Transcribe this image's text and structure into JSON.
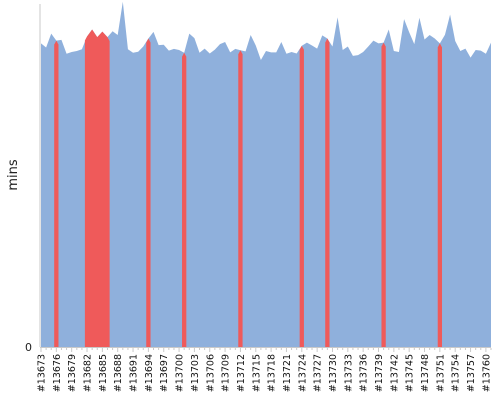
{
  "chart_data": {
    "type": "area",
    "title": "",
    "xlabel": "",
    "ylabel": "mins",
    "ytick_labels": [
      "0"
    ],
    "ylim": [
      0,
      100
    ],
    "grid": false,
    "x_start": 13673,
    "x_end": 13761,
    "x_tick_labels": [
      "#13673",
      "#13676",
      "#13679",
      "#13682",
      "#13685",
      "#13688",
      "#13691",
      "#13694",
      "#13697",
      "#13700",
      "#13703",
      "#13706",
      "#13709",
      "#13712",
      "#13715",
      "#13718",
      "#13721",
      "#13724",
      "#13727",
      "#13730",
      "#13733",
      "#13736",
      "#13739",
      "#13742",
      "#13745",
      "#13748",
      "#13751",
      "#13754",
      "#13757",
      "#13760"
    ],
    "values": [
      87.5,
      86.3,
      90.3,
      88.3,
      88.5,
      84.5,
      85.0,
      85.3,
      85.8,
      89.5,
      91.5,
      89.3,
      90.9,
      89.3,
      91.0,
      89.9,
      99.5,
      85.8,
      84.8,
      85.1,
      86.6,
      88.9,
      90.8,
      87.0,
      87.1,
      85.4,
      85.9,
      85.6,
      84.8,
      90.3,
      89.0,
      84.8,
      86.0,
      84.6,
      85.7,
      87.3,
      87.9,
      84.9,
      85.9,
      85.5,
      85.2,
      89.9,
      86.9,
      82.7,
      85.3,
      84.9,
      84.9,
      87.9,
      84.5,
      85.0,
      84.6,
      86.8,
      87.7,
      86.9,
      86.0,
      89.8,
      88.9,
      86.6,
      95.0,
      85.6,
      86.6,
      83.9,
      84.1,
      85.0,
      86.6,
      88.3,
      87.5,
      87.7,
      91.5,
      85.3,
      85.0,
      94.5,
      90.7,
      87.3,
      94.9,
      88.6,
      89.9,
      88.9,
      87.5,
      90.0,
      95.8,
      88.2,
      85.3,
      86.0,
      83.4,
      85.6,
      85.4,
      84.5,
      87.7
    ],
    "series": [
      {
        "name": "",
        "color": "#8fb0dc"
      },
      {
        "name": "",
        "color": "#ef5a5a",
        "highlight_builds": [
          13676,
          13682,
          13683,
          13684,
          13685,
          13686,
          13694,
          13701,
          13712,
          13724,
          13729,
          13740,
          13751
        ]
      }
    ],
    "axis_color": "#c9c9c9"
  }
}
